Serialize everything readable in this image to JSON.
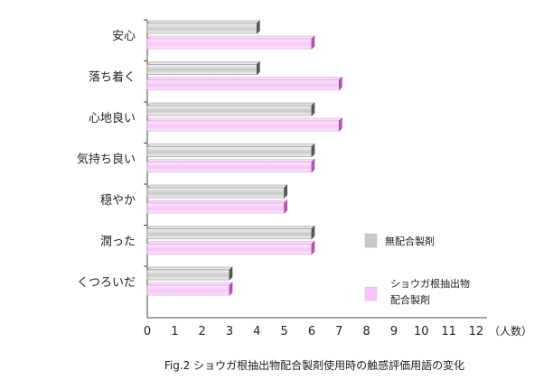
{
  "chart_data": {
    "type": "bar",
    "orientation": "horizontal",
    "categories": [
      "安心",
      "落ち着く",
      "心地良い",
      "気持ち良い",
      "穏やか",
      "潤った",
      "くつろいだ"
    ],
    "series": [
      {
        "name": "無配合製剤",
        "color": "#c8c8c8",
        "values": [
          4,
          4,
          6,
          6,
          5,
          6,
          3
        ]
      },
      {
        "name": "ショウガ根抽出物配合製剤",
        "name_lines": [
          "ショウガ根抽出物",
          "配合製剤"
        ],
        "color": "#f6c4f6",
        "values": [
          6,
          7,
          7,
          6,
          5,
          6,
          3
        ]
      }
    ],
    "xlim": [
      0,
      12
    ],
    "xticks": [
      0,
      1,
      2,
      3,
      4,
      5,
      6,
      7,
      8,
      9,
      10,
      11,
      12
    ],
    "x_unit_label": "（人数）",
    "caption": "Fig.2 ショウガ根抽出物配合製剤使用時の触感評価用語の変化",
    "legend_position": "right"
  }
}
